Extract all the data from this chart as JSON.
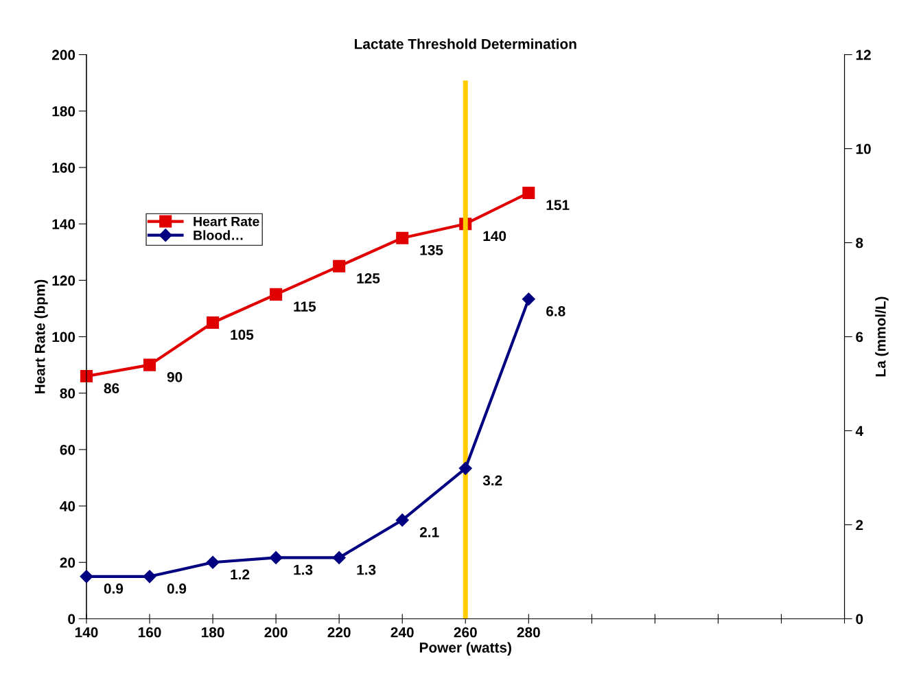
{
  "chart_data": {
    "type": "line",
    "title": "Lactate Threshold Determination",
    "xlabel": "Power (watts)",
    "ylabel": "Heart Rate (bpm)",
    "y2label": "La (mmol/L)",
    "x": [
      140,
      160,
      180,
      200,
      220,
      240,
      260,
      280
    ],
    "series": [
      {
        "name": "Heart Rate",
        "color": "#e00000",
        "marker": "square",
        "values": [
          86,
          90,
          105,
          115,
          125,
          135,
          140,
          151
        ]
      },
      {
        "name": "Blood…",
        "color": "#000080",
        "marker": "diamond",
        "axis": "y2",
        "values": [
          0.9,
          0.9,
          1.2,
          1.3,
          1.3,
          2.1,
          3.2,
          6.8
        ]
      }
    ],
    "xlim": [
      140,
      380
    ],
    "xticks": [
      140,
      160,
      180,
      200,
      220,
      240,
      260,
      280,
      {
        "value": 300,
        "label": null
      },
      {
        "value": 320,
        "label": null
      },
      {
        "value": 340,
        "label": null
      },
      {
        "value": 360,
        "label": null
      },
      {
        "value": 380,
        "label": null
      }
    ],
    "ylim": [
      0,
      200
    ],
    "yticks": [
      0,
      20,
      40,
      60,
      80,
      100,
      120,
      140,
      160,
      180,
      200
    ],
    "y2lim": [
      0,
      12
    ],
    "y2ticks": [
      0,
      2,
      4,
      6,
      8,
      10,
      12
    ],
    "ref_lines": [
      {
        "axis": "x",
        "value": 260,
        "color": "#ffcc00"
      }
    ],
    "data_labels": true,
    "legend": "left",
    "grid": false,
    "line_style": "solid"
  }
}
